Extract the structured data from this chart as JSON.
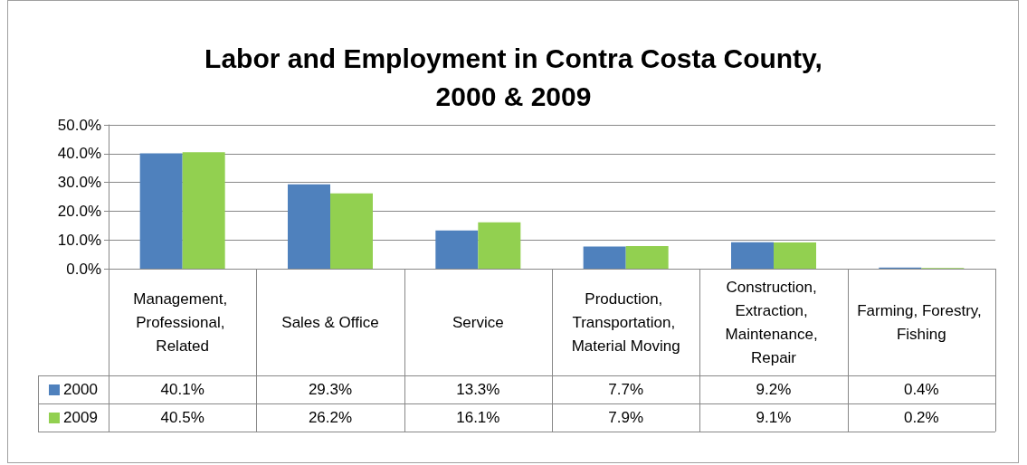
{
  "chart_data": {
    "type": "bar",
    "title": "Labor and Employment in Contra Costa County,\n2000 & 2009",
    "categories": [
      "Management, Professional, Related",
      "Sales & Office",
      "Service",
      "Production, Transportation, Material Moving",
      "Construction, Extraction, Maintenance, Repair",
      "Farming, Forestry, Fishing"
    ],
    "series": [
      {
        "name": "2000",
        "color": "#4f81bd",
        "values": [
          40.1,
          29.3,
          13.3,
          7.7,
          9.2,
          0.4
        ],
        "value_labels": [
          "40.1%",
          "29.3%",
          "13.3%",
          "7.7%",
          "9.2%",
          "0.4%"
        ]
      },
      {
        "name": "2009",
        "color": "#92d050",
        "values": [
          40.5,
          26.2,
          16.1,
          7.9,
          9.1,
          0.2
        ],
        "value_labels": [
          "40.5%",
          "26.2%",
          "16.1%",
          "7.9%",
          "9.1%",
          "0.2%"
        ]
      }
    ],
    "ylim": [
      0,
      50
    ],
    "yticks": [
      {
        "value": 0,
        "label": "0.0%"
      },
      {
        "value": 10,
        "label": "10.0%"
      },
      {
        "value": 20,
        "label": "20.0%"
      },
      {
        "value": 30,
        "label": "30.0%"
      },
      {
        "value": 40,
        "label": "40.0%"
      },
      {
        "value": 50,
        "label": "50.0%"
      }
    ],
    "grid": "y",
    "legend": "bottom"
  }
}
